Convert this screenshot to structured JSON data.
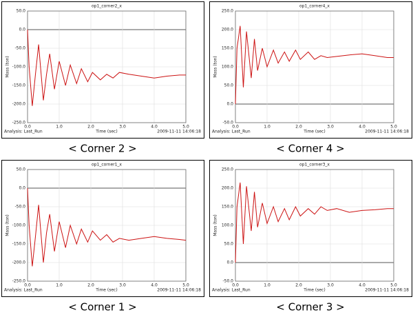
{
  "chart_data": [
    {
      "type": "line",
      "title": "op1_corner2_x",
      "caption": "< Corner 2 >",
      "xlabel": "Time (sec)",
      "ylabel": "Mass (ton)",
      "analysis": "Analysis:  Last_Run",
      "timestamp": "2009-11-11 14:06:18",
      "color": "#cc1111",
      "grid": true,
      "x": [
        0,
        0.05,
        0.15,
        0.25,
        0.35,
        0.5,
        0.6,
        0.7,
        0.85,
        1.0,
        1.2,
        1.35,
        1.55,
        1.7,
        1.9,
        2.05,
        2.3,
        2.5,
        2.7,
        2.9,
        3.2,
        3.6,
        4.0,
        4.4,
        4.8,
        5.0
      ],
      "values": [
        0,
        -100,
        -205,
        -120,
        -40,
        -190,
        -120,
        -65,
        -160,
        -85,
        -150,
        -95,
        -145,
        -105,
        -140,
        -115,
        -135,
        -120,
        -130,
        -115,
        -120,
        -125,
        -130,
        -125,
        -122,
        -122
      ],
      "xlim": [
        0,
        5
      ],
      "xticks": [
        {
          "value": 0,
          "label": "0.0"
        },
        {
          "value": 1,
          "label": "1.0"
        },
        {
          "value": 2,
          "label": "2.0"
        },
        {
          "value": 3,
          "label": "3.0"
        },
        {
          "value": 4,
          "label": "4.0"
        },
        {
          "value": 5,
          "label": "5.0"
        }
      ],
      "ylim": [
        -250,
        50
      ],
      "yticks": [
        {
          "value": -250,
          "label": "-250.0"
        },
        {
          "value": -200,
          "label": "-200.0"
        },
        {
          "value": -150,
          "label": "-150.0"
        },
        {
          "value": -100,
          "label": "-100.0"
        },
        {
          "value": -50,
          "label": "-50.0"
        },
        {
          "value": 0,
          "label": "0.0"
        },
        {
          "value": 50,
          "label": "50.0"
        }
      ]
    },
    {
      "type": "line",
      "title": "op1_corner4_x",
      "caption": "< Corner 4 >",
      "xlabel": "Time (sec)",
      "ylabel": "Mass (ton)",
      "analysis": "Analysis:  Last_Run",
      "timestamp": "2009-11-11 14:06:18",
      "color": "#cc1111",
      "grid": true,
      "x": [
        0,
        0.05,
        0.15,
        0.25,
        0.35,
        0.5,
        0.6,
        0.7,
        0.85,
        1.0,
        1.2,
        1.35,
        1.55,
        1.7,
        1.9,
        2.05,
        2.3,
        2.5,
        2.7,
        2.9,
        3.2,
        3.6,
        4.0,
        4.4,
        4.8,
        5.0
      ],
      "values": [
        0,
        150,
        210,
        45,
        195,
        70,
        175,
        90,
        150,
        100,
        145,
        110,
        140,
        115,
        145,
        120,
        140,
        120,
        130,
        125,
        128,
        132,
        135,
        130,
        125,
        125
      ],
      "xlim": [
        0,
        5
      ],
      "xticks": [
        {
          "value": 0,
          "label": "0.0"
        },
        {
          "value": 1,
          "label": "1.0"
        },
        {
          "value": 2,
          "label": "2.0"
        },
        {
          "value": 3,
          "label": "3.0"
        },
        {
          "value": 4,
          "label": "4.0"
        },
        {
          "value": 5,
          "label": "5.0"
        }
      ],
      "ylim": [
        -50,
        250
      ],
      "yticks": [
        {
          "value": -50,
          "label": "-50.0"
        },
        {
          "value": 0,
          "label": "0.0"
        },
        {
          "value": 50,
          "label": "50.0"
        },
        {
          "value": 100,
          "label": "100.0"
        },
        {
          "value": 150,
          "label": "150.0"
        },
        {
          "value": 200,
          "label": "200.0"
        },
        {
          "value": 250,
          "label": "250.0"
        }
      ]
    },
    {
      "type": "line",
      "title": "op1_corner1_x",
      "caption": "< Corner 1 >",
      "xlabel": "Time (sec)",
      "ylabel": "Mass (ton)",
      "analysis": "Analysis:  Last_Run",
      "timestamp": "2009-11-11 14:06:18",
      "color": "#cc1111",
      "grid": true,
      "x": [
        0,
        0.05,
        0.15,
        0.25,
        0.35,
        0.5,
        0.6,
        0.7,
        0.85,
        1.0,
        1.2,
        1.35,
        1.55,
        1.7,
        1.9,
        2.05,
        2.3,
        2.5,
        2.7,
        2.9,
        3.2,
        3.6,
        4.0,
        4.4,
        4.8,
        5.0
      ],
      "values": [
        0,
        -100,
        -210,
        -130,
        -45,
        -200,
        -120,
        -70,
        -170,
        -90,
        -160,
        -100,
        -150,
        -110,
        -145,
        -115,
        -140,
        -125,
        -145,
        -135,
        -140,
        -135,
        -130,
        -135,
        -138,
        -140
      ],
      "xlim": [
        0,
        5
      ],
      "xticks": [
        {
          "value": 0,
          "label": "0.0"
        },
        {
          "value": 1,
          "label": "1.0"
        },
        {
          "value": 2,
          "label": "2.0"
        },
        {
          "value": 3,
          "label": "3.0"
        },
        {
          "value": 4,
          "label": "4.0"
        },
        {
          "value": 5,
          "label": "5.0"
        }
      ],
      "ylim": [
        -250,
        50
      ],
      "yticks": [
        {
          "value": -250,
          "label": "-250.0"
        },
        {
          "value": -200,
          "label": "-200.0"
        },
        {
          "value": -150,
          "label": "-150.0"
        },
        {
          "value": -100,
          "label": "-100.0"
        },
        {
          "value": -50,
          "label": "-50.0"
        },
        {
          "value": 0,
          "label": "0.0"
        },
        {
          "value": 50,
          "label": "50.0"
        }
      ]
    },
    {
      "type": "line",
      "title": "op1_corner3_x",
      "caption": "< Corner 3 >",
      "xlabel": "Time (sec)",
      "ylabel": "Mass (ton)",
      "analysis": "Analysis:  Last_Run",
      "timestamp": "2009-11-11 14:06:18",
      "color": "#cc1111",
      "grid": true,
      "x": [
        0,
        0.05,
        0.15,
        0.25,
        0.35,
        0.5,
        0.6,
        0.7,
        0.85,
        1.0,
        1.2,
        1.35,
        1.55,
        1.7,
        1.9,
        2.05,
        2.3,
        2.5,
        2.7,
        2.9,
        3.2,
        3.6,
        4.0,
        4.4,
        4.8,
        5.0
      ],
      "values": [
        0,
        150,
        215,
        50,
        205,
        85,
        190,
        95,
        160,
        105,
        150,
        110,
        145,
        115,
        150,
        125,
        145,
        130,
        150,
        140,
        145,
        135,
        140,
        142,
        145,
        145
      ],
      "xlim": [
        0,
        5
      ],
      "xticks": [
        {
          "value": 0,
          "label": "0.0"
        },
        {
          "value": 1,
          "label": "1.0"
        },
        {
          "value": 2,
          "label": "2.0"
        },
        {
          "value": 3,
          "label": "3.0"
        },
        {
          "value": 4,
          "label": "4.0"
        },
        {
          "value": 5,
          "label": "5.0"
        }
      ],
      "ylim": [
        -50,
        250
      ],
      "yticks": [
        {
          "value": -50,
          "label": "-50.0"
        },
        {
          "value": 0,
          "label": "0.0"
        },
        {
          "value": 50,
          "label": "50.0"
        },
        {
          "value": 100,
          "label": "100.0"
        },
        {
          "value": 150,
          "label": "150.0"
        },
        {
          "value": 200,
          "label": "200.0"
        },
        {
          "value": 250,
          "label": "250.0"
        }
      ]
    }
  ]
}
